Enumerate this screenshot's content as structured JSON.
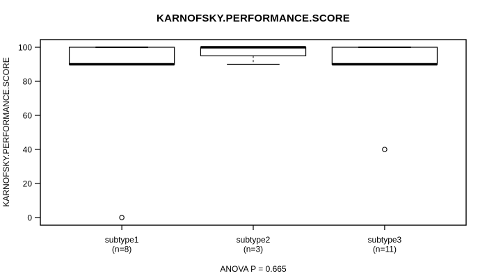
{
  "title": "KARNOFSKY.PERFORMANCE.SCORE",
  "chart_data": {
    "type": "boxplot",
    "title": "KARNOFSKY.PERFORMANCE.SCORE",
    "ylabel": "KARNOFSKY.PERFORMANCE.SCORE",
    "xlabel": "",
    "ylim": [
      0,
      100
    ],
    "yticks": [
      0,
      20,
      40,
      60,
      80,
      100
    ],
    "grid": false,
    "legend": "none",
    "annotation": "ANOVA P = 0.665",
    "groups": [
      {
        "label": "subtype1",
        "sublabel": "(n=8)",
        "n": 8,
        "q1": 90,
        "median": 90,
        "q3": 100,
        "whisker_low": 90,
        "whisker_high": 100,
        "outliers": [
          0
        ]
      },
      {
        "label": "subtype2",
        "sublabel": "(n=3)",
        "n": 3,
        "q1": 95,
        "median": 100,
        "q3": 100,
        "whisker_low": 90,
        "whisker_high": 100,
        "outliers": []
      },
      {
        "label": "subtype3",
        "sublabel": "(n=11)",
        "n": 11,
        "q1": 90,
        "median": 90,
        "q3": 100,
        "whisker_low": 90,
        "whisker_high": 100,
        "outliers": [
          40
        ]
      }
    ],
    "colors": {
      "line": "#000000",
      "box_fill": "#ffffff",
      "background": "#ffffff"
    }
  }
}
